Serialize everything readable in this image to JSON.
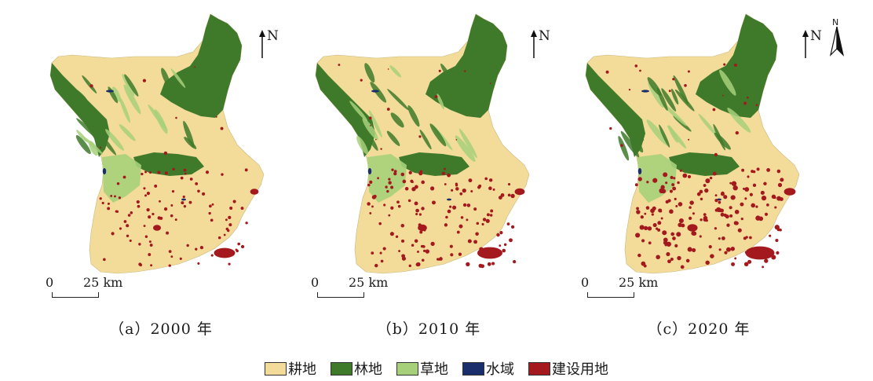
{
  "north_label": "N",
  "compass_label": "N",
  "scale": {
    "start": "0",
    "end": "25 km"
  },
  "panels": [
    {
      "caption": "（a）2000 年",
      "construction_level": 0.35
    },
    {
      "caption": "（b）2010 年",
      "construction_level": 0.6
    },
    {
      "caption": "（c）2020 年",
      "construction_level": 0.85
    }
  ],
  "legend": [
    {
      "label": "耕地",
      "color": "#f3dc9a"
    },
    {
      "label": "林地",
      "color": "#3e7a2a"
    },
    {
      "label": "草地",
      "color": "#a7d07a"
    },
    {
      "label": "水域",
      "color": "#1a2e6b"
    },
    {
      "label": "建设用地",
      "color": "#a3191d"
    }
  ]
}
